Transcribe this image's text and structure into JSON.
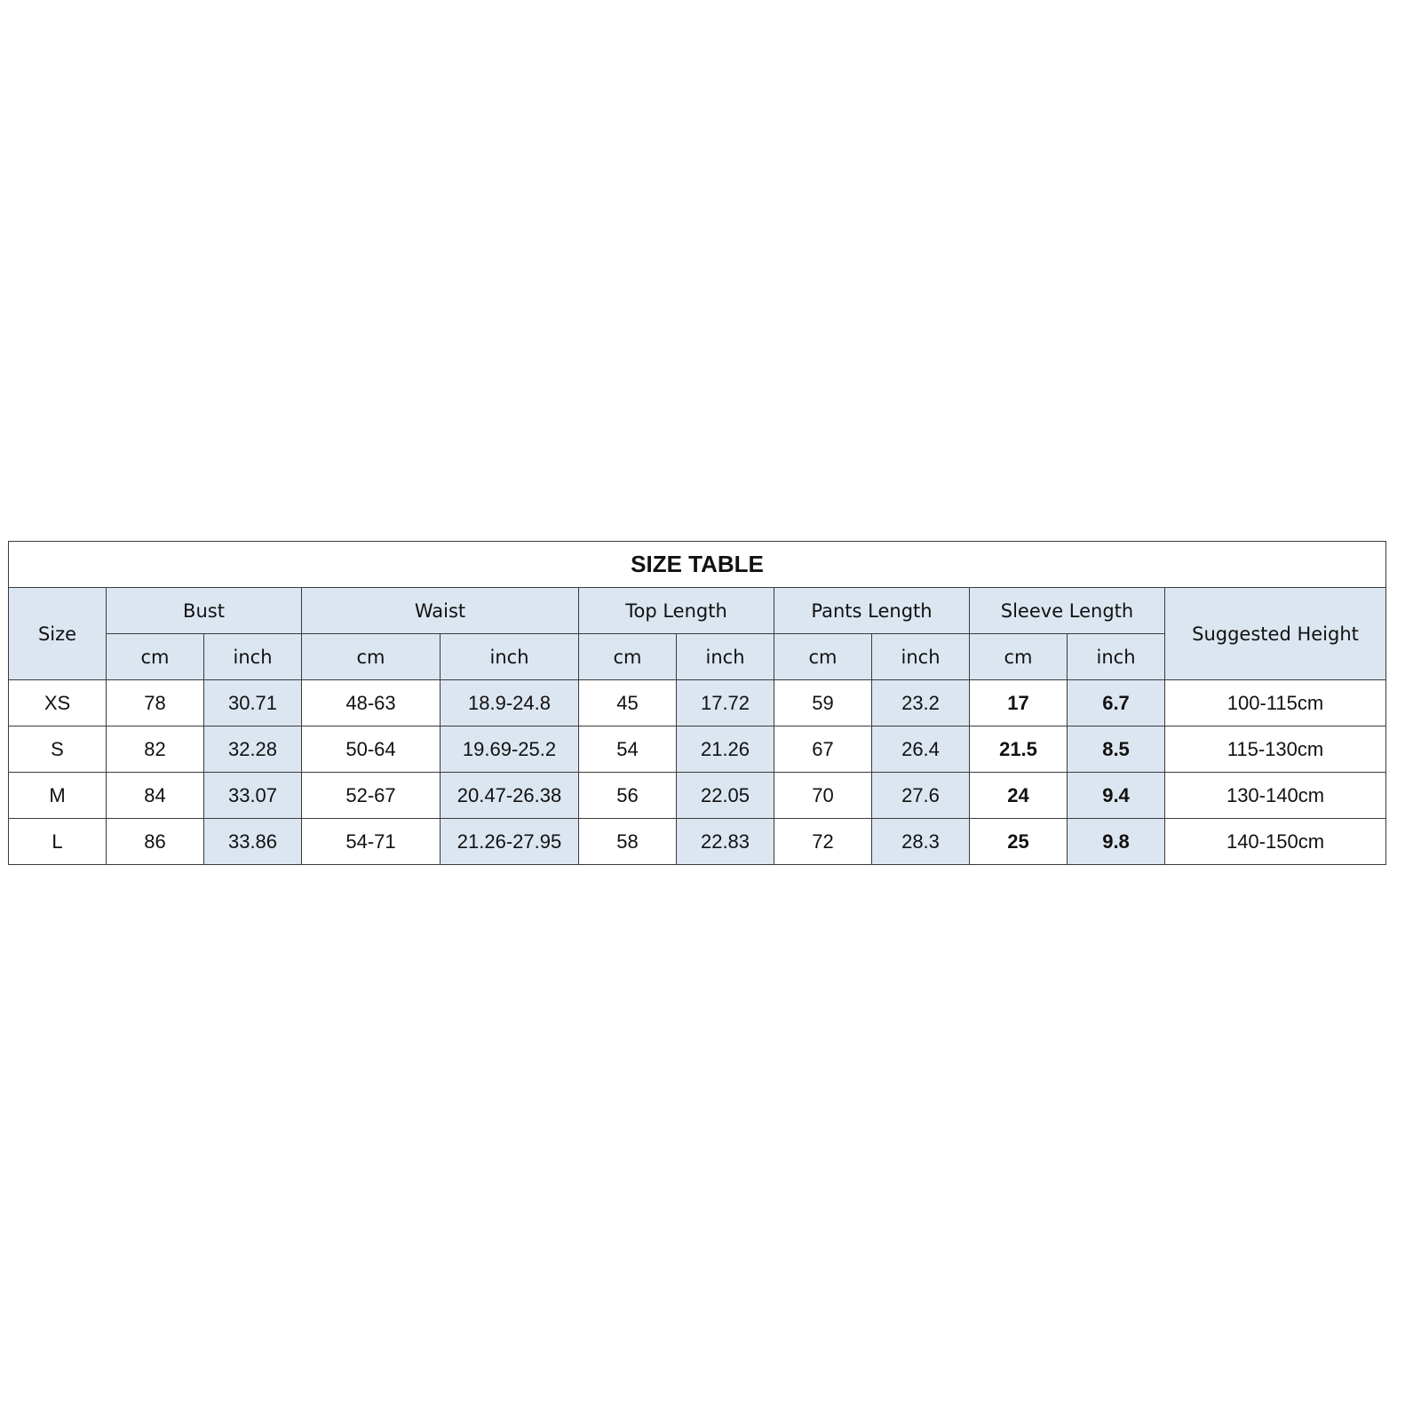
{
  "title": "SIZE TABLE",
  "headers": {
    "size": "Size",
    "groups": [
      "Bust",
      "Waist",
      "Top Length",
      "Pants Length",
      "Sleeve Length"
    ],
    "suggested_height": "Suggested Height",
    "units": [
      "cm",
      "inch",
      "cm",
      "inch",
      "cm",
      "inch",
      "cm",
      "inch",
      "cm",
      "inch"
    ]
  },
  "rows": [
    [
      "XS",
      "78",
      "30.71",
      "48-63",
      "18.9-24.8",
      "45",
      "17.72",
      "59",
      "23.2",
      "17",
      "6.7",
      "100-115cm"
    ],
    [
      "S",
      "82",
      "32.28",
      "50-64",
      "19.69-25.2",
      "54",
      "21.26",
      "67",
      "26.4",
      "21.5",
      "8.5",
      "115-130cm"
    ],
    [
      "M",
      "84",
      "33.07",
      "52-67",
      "20.47-26.38",
      "56",
      "22.05",
      "70",
      "27.6",
      "24",
      "9.4",
      "130-140cm"
    ],
    [
      "L",
      "86",
      "33.86",
      "54-71",
      "21.26-27.95",
      "58",
      "22.83",
      "72",
      "28.3",
      "25",
      "9.8",
      "140-150cm"
    ]
  ],
  "colors": {
    "header_bg": "#dce6f1",
    "border": "#3a3a3a"
  }
}
